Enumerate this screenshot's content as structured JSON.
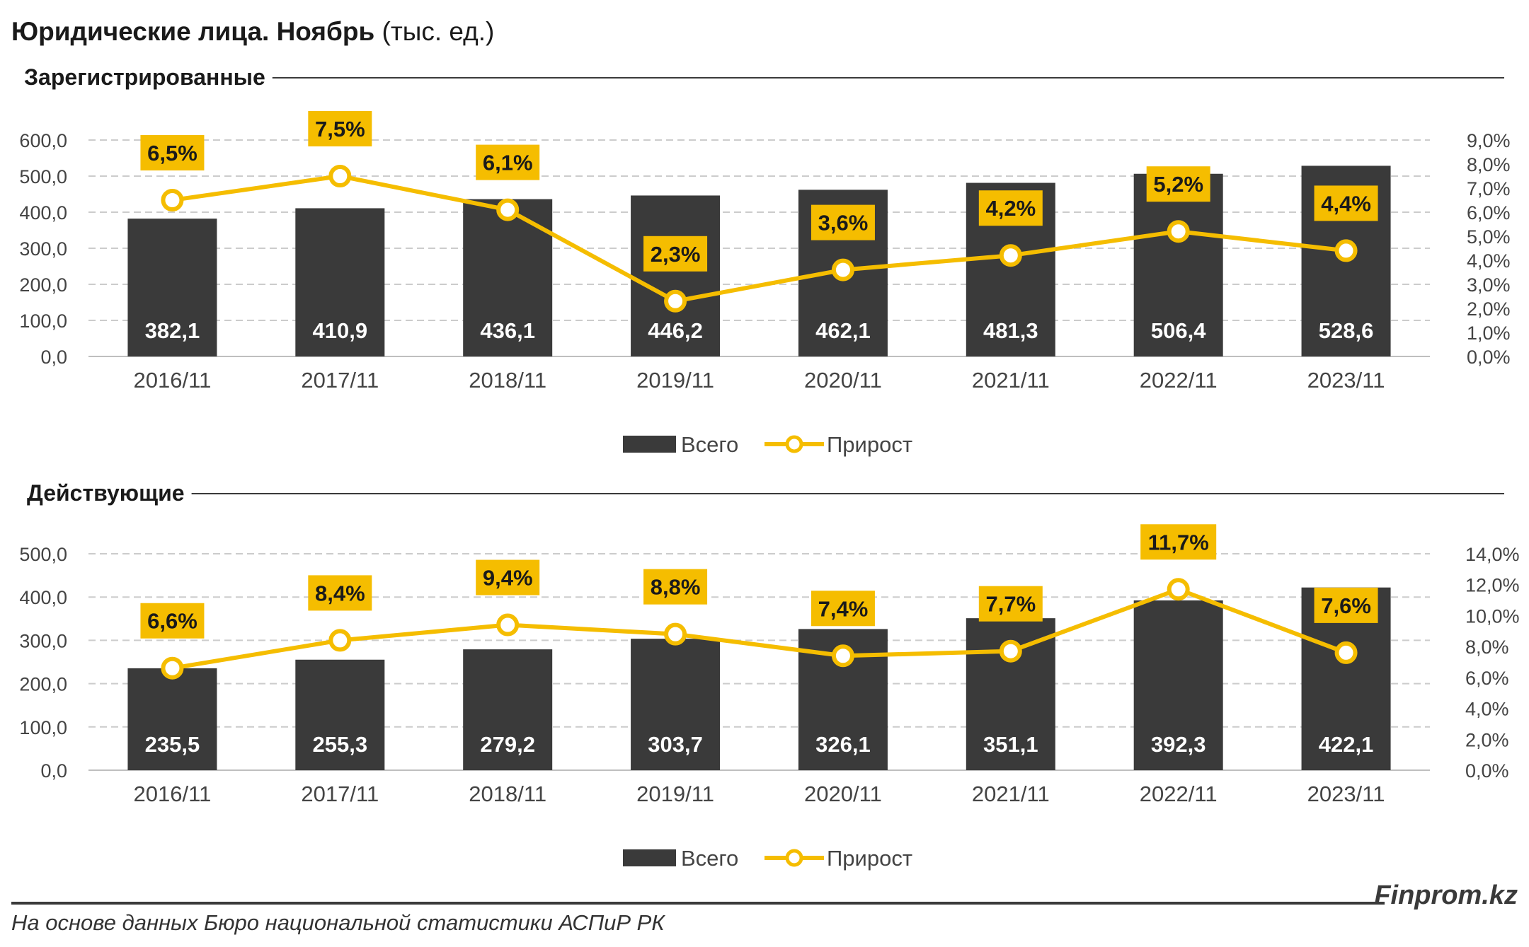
{
  "page": {
    "title_bold": "Юридические лица. Ноябрь",
    "title_normal": "(тыс. ед.)",
    "source": "На основе данных Бюро национальной статистики АСПиР РК",
    "brand": "Finprom.kz"
  },
  "colors": {
    "bar": "#3a3a3a",
    "line": "#f5bd00",
    "label_bg": "#f5bd00",
    "grid": "#cccccc"
  },
  "chart_data": [
    {
      "type": "bar",
      "title": "Зарегистрированные",
      "categories": [
        "2016/11",
        "2017/11",
        "2018/11",
        "2019/11",
        "2020/11",
        "2021/11",
        "2022/11",
        "2023/11"
      ],
      "series": [
        {
          "name": "Всего",
          "type": "bar",
          "axis": "left",
          "values": [
            382.1,
            410.9,
            436.1,
            446.2,
            462.1,
            481.3,
            506.4,
            528.6
          ],
          "labels": [
            "382,1",
            "410,9",
            "436,1",
            "446,2",
            "462,1",
            "481,3",
            "506,4",
            "528,6"
          ]
        },
        {
          "name": "Прирост",
          "type": "line",
          "axis": "right",
          "values": [
            6.5,
            7.5,
            6.1,
            2.3,
            3.6,
            4.2,
            5.2,
            4.4
          ],
          "labels": [
            "6,5%",
            "7,5%",
            "6,1%",
            "2,3%",
            "3,6%",
            "4,2%",
            "5,2%",
            "4,4%"
          ]
        }
      ],
      "ylim": [
        0,
        600
      ],
      "yticks": [
        "0,0",
        "100,0",
        "200,0",
        "300,0",
        "400,0",
        "500,0",
        "600,0"
      ],
      "y2lim": [
        0,
        9
      ],
      "y2ticks": [
        "0,0%",
        "1,0%",
        "2,0%",
        "3,0%",
        "4,0%",
        "5,0%",
        "6,0%",
        "7,0%",
        "8,0%",
        "9,0%"
      ],
      "grid": true,
      "legend": "bottom-center"
    },
    {
      "type": "bar",
      "title": "Действующие",
      "categories": [
        "2016/11",
        "2017/11",
        "2018/11",
        "2019/11",
        "2020/11",
        "2021/11",
        "2022/11",
        "2023/11"
      ],
      "series": [
        {
          "name": "Всего",
          "type": "bar",
          "axis": "left",
          "values": [
            235.5,
            255.3,
            279.2,
            303.7,
            326.1,
            351.1,
            392.3,
            422.1
          ],
          "labels": [
            "235,5",
            "255,3",
            "279,2",
            "303,7",
            "326,1",
            "351,1",
            "392,3",
            "422,1"
          ]
        },
        {
          "name": "Прирост",
          "type": "line",
          "axis": "right",
          "values": [
            6.6,
            8.4,
            9.4,
            8.8,
            7.4,
            7.7,
            11.7,
            7.6
          ],
          "labels": [
            "6,6%",
            "8,4%",
            "9,4%",
            "8,8%",
            "7,4%",
            "7,7%",
            "11,7%",
            "7,6%"
          ]
        }
      ],
      "ylim": [
        0,
        500
      ],
      "yticks": [
        "0,0",
        "100,0",
        "200,0",
        "300,0",
        "400,0",
        "500,0"
      ],
      "y2lim": [
        0,
        14
      ],
      "y2ticks": [
        "0,0%",
        "2,0%",
        "4,0%",
        "6,0%",
        "8,0%",
        "10,0%",
        "12,0%",
        "14,0%"
      ],
      "grid": true,
      "legend": "bottom-center"
    }
  ]
}
